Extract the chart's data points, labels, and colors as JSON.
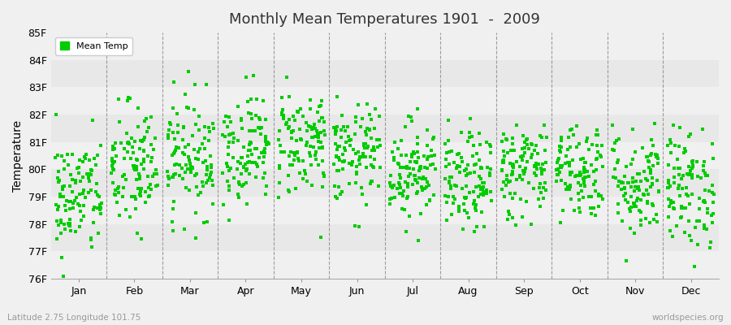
{
  "title": "Monthly Mean Temperatures 1901  -  2009",
  "ylabel": "Temperature",
  "xlabel_labels": [
    "Jan",
    "Feb",
    "Mar",
    "Apr",
    "May",
    "Jun",
    "Jul",
    "Aug",
    "Sep",
    "Oct",
    "Nov",
    "Dec"
  ],
  "ytick_labels": [
    "76F",
    "77F",
    "78F",
    "79F",
    "80F",
    "81F",
    "82F",
    "83F",
    "84F",
    "85F"
  ],
  "ytick_values": [
    76,
    77,
    78,
    79,
    80,
    81,
    82,
    83,
    84,
    85
  ],
  "ylim": [
    76,
    85
  ],
  "dot_color": "#00cc00",
  "dot_size": 8,
  "marker": "s",
  "legend_label": "Mean Temp",
  "subtitle_left": "Latitude 2.75 Longitude 101.75",
  "subtitle_right": "worldspecies.org",
  "background_color": "#f0f0f0",
  "band_colors": [
    "#f0f0f0",
    "#e8e8e8"
  ],
  "n_years": 109,
  "seed": 42,
  "monthly_means": [
    79.0,
    80.0,
    80.5,
    80.8,
    81.0,
    80.5,
    80.0,
    79.5,
    80.0,
    80.0,
    79.5,
    79.3
  ],
  "monthly_stds": [
    1.1,
    1.2,
    1.1,
    1.0,
    1.0,
    0.9,
    0.9,
    0.9,
    0.9,
    0.9,
    1.0,
    1.1
  ]
}
